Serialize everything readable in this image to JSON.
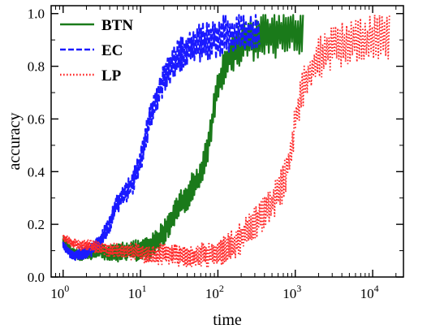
{
  "chart_data": {
    "type": "line",
    "title": "",
    "xlabel": "time",
    "ylabel": "accuracy",
    "xscale": "log",
    "xlim": [
      0.7,
      25000
    ],
    "ylim": [
      0,
      1.03
    ],
    "xticks": [
      {
        "value": 1,
        "base": "10",
        "exp": "0"
      },
      {
        "value": 10,
        "base": "10",
        "exp": "1"
      },
      {
        "value": 100,
        "base": "10",
        "exp": "2"
      },
      {
        "value": 1000,
        "base": "10",
        "exp": "3"
      },
      {
        "value": 10000,
        "base": "10",
        "exp": "4"
      }
    ],
    "yticks": [
      {
        "value": 0,
        "label": "0.0"
      },
      {
        "value": 0.2,
        "label": "0.2"
      },
      {
        "value": 0.4,
        "label": "0.4"
      },
      {
        "value": 0.6,
        "label": "0.6"
      },
      {
        "value": 0.8,
        "label": "0.8"
      },
      {
        "value": 1.0,
        "label": "1.0"
      }
    ],
    "grid": false,
    "legend_position": "top-left",
    "series": [
      {
        "name": "BTN",
        "color": "#1a7a1a",
        "style": "solid",
        "x": [
          1,
          1.3,
          1.7,
          2.2,
          3,
          4,
          5,
          6,
          8,
          10,
          13,
          17,
          22,
          30,
          40,
          50,
          60,
          70,
          80,
          100,
          130,
          170,
          220,
          300,
          400,
          600,
          800,
          1000,
          1300
        ],
        "y": [
          0.14,
          0.09,
          0.08,
          0.09,
          0.1,
          0.09,
          0.09,
          0.1,
          0.1,
          0.1,
          0.11,
          0.14,
          0.19,
          0.26,
          0.31,
          0.35,
          0.38,
          0.46,
          0.55,
          0.73,
          0.82,
          0.87,
          0.89,
          0.9,
          0.92,
          0.92,
          0.93,
          0.93,
          0.94
        ]
      },
      {
        "name": "EC",
        "color": "#1a1aff",
        "style": "dashed",
        "x": [
          1,
          1.3,
          1.7,
          2.2,
          3,
          4,
          5,
          6,
          8,
          10,
          12,
          15,
          20,
          25,
          30,
          40,
          50,
          70,
          100,
          150,
          200,
          250,
          300,
          350
        ],
        "y": [
          0.12,
          0.08,
          0.09,
          0.1,
          0.13,
          0.2,
          0.28,
          0.31,
          0.36,
          0.44,
          0.55,
          0.66,
          0.75,
          0.8,
          0.84,
          0.86,
          0.88,
          0.9,
          0.91,
          0.92,
          0.92,
          0.93,
          0.93,
          0.93
        ]
      },
      {
        "name": "LP",
        "color": "#ff2a2a",
        "style": "dotted",
        "x": [
          1,
          1.3,
          1.7,
          2.2,
          3,
          4,
          5,
          7,
          10,
          15,
          20,
          30,
          50,
          80,
          120,
          150,
          200,
          300,
          400,
          500,
          600,
          700,
          800,
          900,
          1000,
          1200,
          1500,
          2000,
          3000,
          5000,
          8000,
          12000,
          17000
        ],
        "y": [
          0.15,
          0.13,
          0.12,
          0.12,
          0.11,
          0.1,
          0.1,
          0.1,
          0.09,
          0.08,
          0.09,
          0.08,
          0.08,
          0.09,
          0.1,
          0.12,
          0.15,
          0.2,
          0.24,
          0.28,
          0.32,
          0.36,
          0.42,
          0.5,
          0.6,
          0.7,
          0.78,
          0.83,
          0.87,
          0.89,
          0.9,
          0.91,
          0.92
        ]
      }
    ]
  }
}
